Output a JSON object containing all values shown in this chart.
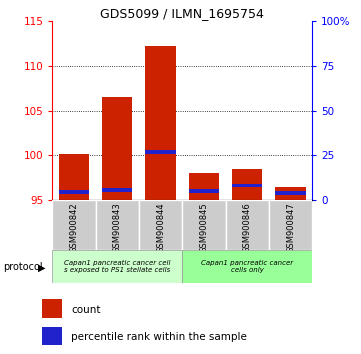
{
  "title": "GDS5099 / ILMN_1695754",
  "samples": [
    "GSM900842",
    "GSM900843",
    "GSM900844",
    "GSM900845",
    "GSM900846",
    "GSM900847"
  ],
  "count_values": [
    100.2,
    106.5,
    112.2,
    98.0,
    98.5,
    96.5
  ],
  "percentile_values": [
    4.5,
    5.5,
    27.0,
    5.0,
    8.0,
    4.0
  ],
  "count_base": 95,
  "ylim_left": [
    95,
    115
  ],
  "ylim_right": [
    0,
    100
  ],
  "yticks_left": [
    95,
    100,
    105,
    110,
    115
  ],
  "yticks_right": [
    0,
    25,
    50,
    75,
    100
  ],
  "ytick_labels_right": [
    "0",
    "25",
    "50",
    "75",
    "100%"
  ],
  "bar_color": "#cc2200",
  "percentile_color": "#2222cc",
  "group1_label": "Capan1 pancreatic cancer cell\ns exposed to PS1 stellate cells",
  "group2_label": "Capan1 pancreatic cancer\ncells only",
  "group1_color": "#ccffcc",
  "group2_color": "#99ff99",
  "protocol_label": "protocol",
  "legend_count_label": "count",
  "legend_percentile_label": "percentile rank within the sample",
  "bar_color_legend": "#cc2200",
  "percentile_color_legend": "#2222cc",
  "bar_width": 0.7,
  "label_box_color": "#cccccc",
  "percentile_bar_height": 0.4
}
